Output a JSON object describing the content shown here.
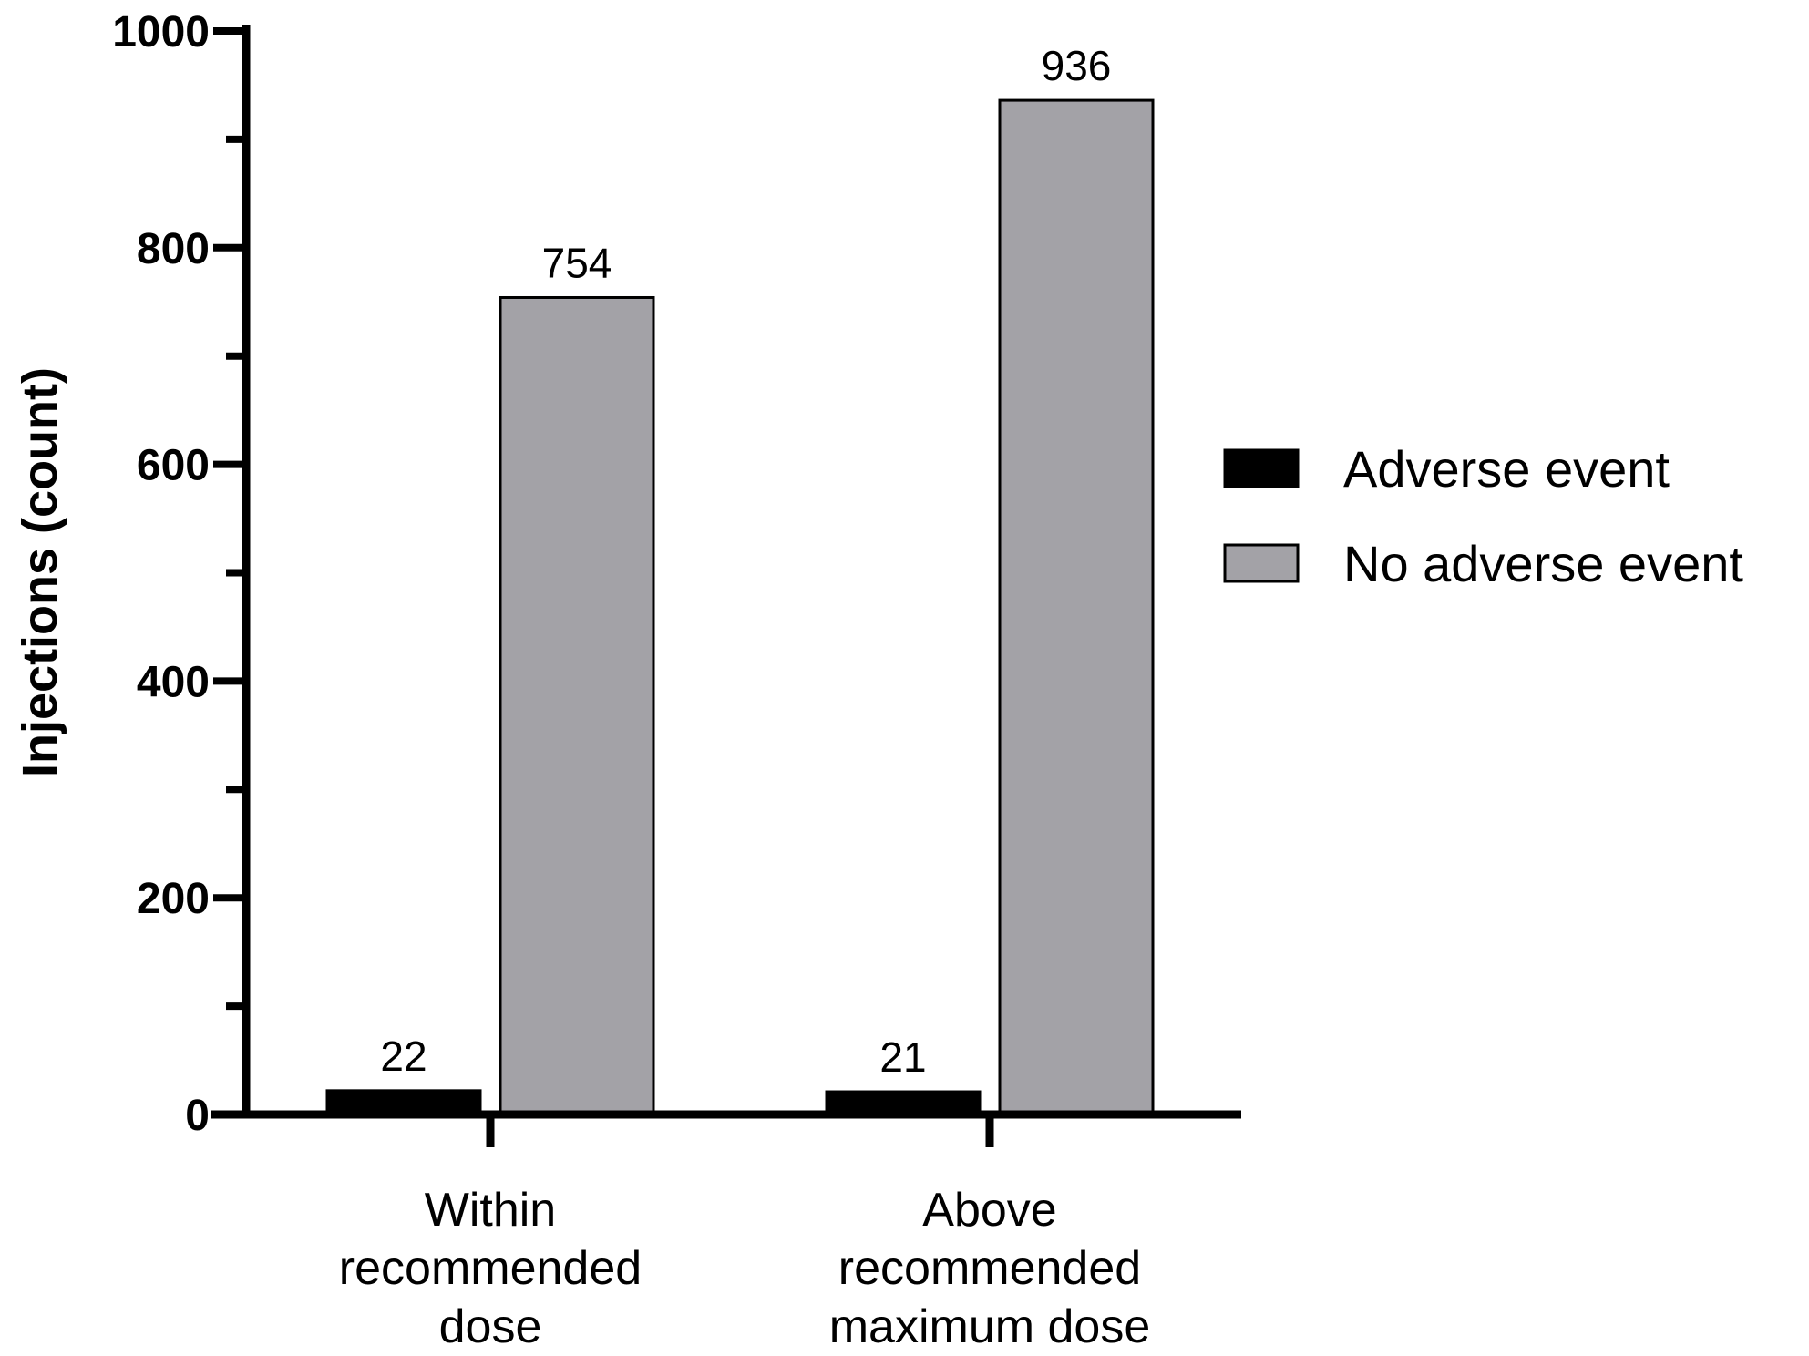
{
  "chart_data": {
    "type": "bar",
    "categories": [
      [
        "Within",
        "recommended",
        "dose"
      ],
      [
        "Above",
        "recommended",
        "maximum dose"
      ]
    ],
    "series": [
      {
        "name": "Adverse event",
        "values": [
          22,
          21
        ],
        "color": "#000000"
      },
      {
        "name": "No adverse event",
        "values": [
          754,
          936
        ],
        "color": "#a3a2a7"
      }
    ],
    "ylabel": "Injections (count)",
    "ylim": [
      0,
      1000
    ],
    "yticks": [
      "0",
      "200",
      "400",
      "600",
      "800",
      "1000"
    ],
    "ytick_values": [
      0,
      200,
      400,
      600,
      800,
      1000
    ],
    "minor_tick_step": 100,
    "legend_position": "right",
    "grid": false
  }
}
